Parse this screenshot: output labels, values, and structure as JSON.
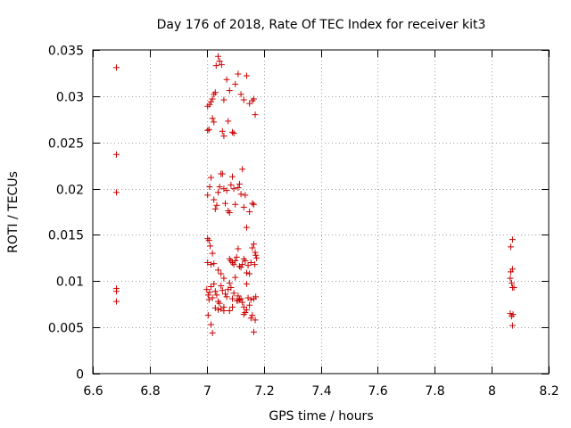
{
  "chart_data": {
    "type": "scatter",
    "title": "Day 176 of 2018, Rate Of TEC Index for receiver kit3",
    "xlabel": "GPS time / hours",
    "ylabel": "ROTI / TECUs",
    "xlim": [
      6.6,
      8.2
    ],
    "ylim": [
      0,
      0.035
    ],
    "xticks": [
      6.6,
      6.8,
      7.0,
      7.2,
      7.4,
      7.6,
      7.8,
      8.0,
      8.2
    ],
    "xtick_labels": [
      "6.6",
      "6.8",
      "7",
      "7.2",
      "7.4",
      "7.6",
      "7.8",
      "8",
      "8.2"
    ],
    "yticks": [
      0,
      0.005,
      0.01,
      0.015,
      0.02,
      0.025,
      0.03,
      0.035
    ],
    "ytick_labels": [
      "0",
      "0.005",
      "0.01",
      "0.015",
      "0.02",
      "0.025",
      "0.03",
      "0.035"
    ],
    "grid": true,
    "marker": "+",
    "color": "#cc0000",
    "series": [
      {
        "name": "kit3",
        "points": [
          [
            6.683,
            0.0331
          ],
          [
            6.683,
            0.0237
          ],
          [
            6.683,
            0.0196
          ],
          [
            6.683,
            0.0092
          ],
          [
            6.683,
            0.0089
          ],
          [
            6.683,
            0.0078
          ],
          [
            7.003,
            0.0289
          ],
          [
            7.01,
            0.0291
          ],
          [
            7.015,
            0.0294
          ],
          [
            7.02,
            0.0297
          ],
          [
            7.025,
            0.0302
          ],
          [
            7.03,
            0.0304
          ],
          [
            7.033,
            0.0333
          ],
          [
            7.04,
            0.0343
          ],
          [
            7.045,
            0.0338
          ],
          [
            7.052,
            0.0334
          ],
          [
            7.07,
            0.0318
          ],
          [
            7.003,
            0.0263
          ],
          [
            7.008,
            0.0264
          ],
          [
            7.02,
            0.0276
          ],
          [
            7.025,
            0.0272
          ],
          [
            7.06,
            0.0296
          ],
          [
            7.055,
            0.0262
          ],
          [
            7.06,
            0.0257
          ],
          [
            7.075,
            0.0273
          ],
          [
            7.08,
            0.0306
          ],
          [
            7.09,
            0.0261
          ],
          [
            7.095,
            0.026
          ],
          [
            7.1,
            0.0313
          ],
          [
            7.11,
            0.0324
          ],
          [
            7.12,
            0.0302
          ],
          [
            7.13,
            0.0296
          ],
          [
            7.14,
            0.0322
          ],
          [
            7.15,
            0.0292
          ],
          [
            7.16,
            0.0295
          ],
          [
            7.165,
            0.0297
          ],
          [
            7.17,
            0.028
          ],
          [
            7.003,
            0.0193
          ],
          [
            7.01,
            0.0202
          ],
          [
            7.015,
            0.0212
          ],
          [
            7.025,
            0.0188
          ],
          [
            7.03,
            0.0178
          ],
          [
            7.035,
            0.0182
          ],
          [
            7.04,
            0.0196
          ],
          [
            7.045,
            0.0202
          ],
          [
            7.05,
            0.0216
          ],
          [
            7.055,
            0.0216
          ],
          [
            7.06,
            0.02
          ],
          [
            7.065,
            0.0184
          ],
          [
            7.07,
            0.0198
          ],
          [
            7.075,
            0.0176
          ],
          [
            7.08,
            0.0174
          ],
          [
            7.085,
            0.0204
          ],
          [
            7.09,
            0.0213
          ],
          [
            7.095,
            0.02
          ],
          [
            7.1,
            0.0183
          ],
          [
            7.11,
            0.0201
          ],
          [
            7.115,
            0.0205
          ],
          [
            7.12,
            0.0194
          ],
          [
            7.125,
            0.0221
          ],
          [
            7.13,
            0.018
          ],
          [
            7.135,
            0.0193
          ],
          [
            7.14,
            0.0158
          ],
          [
            7.15,
            0.0175
          ],
          [
            7.16,
            0.0184
          ],
          [
            7.165,
            0.0183
          ],
          [
            7.003,
            0.0146
          ],
          [
            7.008,
            0.0144
          ],
          [
            7.012,
            0.0138
          ],
          [
            7.02,
            0.013
          ],
          [
            7.003,
            0.012
          ],
          [
            7.015,
            0.0118
          ],
          [
            7.025,
            0.0119
          ],
          [
            7.04,
            0.0112
          ],
          [
            7.05,
            0.0108
          ],
          [
            7.06,
            0.0103
          ],
          [
            7.08,
            0.0124
          ],
          [
            7.085,
            0.0122
          ],
          [
            7.09,
            0.012
          ],
          [
            7.095,
            0.0118
          ],
          [
            7.1,
            0.0122
          ],
          [
            7.105,
            0.0126
          ],
          [
            7.11,
            0.0135
          ],
          [
            7.115,
            0.0116
          ],
          [
            7.12,
            0.0115
          ],
          [
            7.125,
            0.0118
          ],
          [
            7.13,
            0.0124
          ],
          [
            7.135,
            0.0122
          ],
          [
            7.14,
            0.0109
          ],
          [
            7.145,
            0.0117
          ],
          [
            7.15,
            0.0108
          ],
          [
            7.155,
            0.012
          ],
          [
            7.16,
            0.0136
          ],
          [
            7.165,
            0.014
          ],
          [
            7.17,
            0.0131
          ],
          [
            7.172,
            0.0128
          ],
          [
            7.175,
            0.0125
          ],
          [
            7.168,
            0.0118
          ],
          [
            7.0,
            0.0091
          ],
          [
            7.005,
            0.0085
          ],
          [
            7.008,
            0.008
          ],
          [
            7.01,
            0.0088
          ],
          [
            7.015,
            0.0094
          ],
          [
            7.02,
            0.0082
          ],
          [
            7.025,
            0.0097
          ],
          [
            7.03,
            0.0089
          ],
          [
            7.035,
            0.0085
          ],
          [
            7.04,
            0.0078
          ],
          [
            7.045,
            0.0076
          ],
          [
            7.05,
            0.0095
          ],
          [
            7.055,
            0.009
          ],
          [
            7.06,
            0.0072
          ],
          [
            7.065,
            0.0086
          ],
          [
            7.07,
            0.0083
          ],
          [
            7.075,
            0.0091
          ],
          [
            7.08,
            0.0098
          ],
          [
            7.085,
            0.0093
          ],
          [
            7.09,
            0.0081
          ],
          [
            7.095,
            0.0087
          ],
          [
            7.1,
            0.0104
          ],
          [
            7.105,
            0.0079
          ],
          [
            7.11,
            0.0084
          ],
          [
            7.115,
            0.008
          ],
          [
            7.12,
            0.0081
          ],
          [
            7.125,
            0.0077
          ],
          [
            7.13,
            0.0072
          ],
          [
            7.135,
            0.0066
          ],
          [
            7.14,
            0.0097
          ],
          [
            7.145,
            0.0082
          ],
          [
            7.15,
            0.0074
          ],
          [
            7.155,
            0.008
          ],
          [
            7.16,
            0.0063
          ],
          [
            7.165,
            0.0081
          ],
          [
            7.17,
            0.0058
          ],
          [
            7.172,
            0.0083
          ],
          [
            7.165,
            0.0045
          ],
          [
            7.005,
            0.0063
          ],
          [
            7.015,
            0.0053
          ],
          [
            7.02,
            0.0044
          ],
          [
            7.03,
            0.0071
          ],
          [
            7.04,
            0.0069
          ],
          [
            7.05,
            0.007
          ],
          [
            7.06,
            0.0068
          ],
          [
            7.08,
            0.0068
          ],
          [
            7.09,
            0.0072
          ],
          [
            7.11,
            0.0079
          ],
          [
            7.13,
            0.0064
          ],
          [
            7.14,
            0.0069
          ],
          [
            7.155,
            0.006
          ],
          [
            8.067,
            0.0137
          ],
          [
            8.073,
            0.0145
          ],
          [
            8.067,
            0.011
          ],
          [
            8.073,
            0.0113
          ],
          [
            8.065,
            0.0103
          ],
          [
            8.07,
            0.0098
          ],
          [
            8.073,
            0.0093
          ],
          [
            8.078,
            0.0093
          ],
          [
            8.065,
            0.0065
          ],
          [
            8.07,
            0.0062
          ],
          [
            8.075,
            0.0064
          ],
          [
            8.073,
            0.0052
          ]
        ]
      }
    ]
  }
}
